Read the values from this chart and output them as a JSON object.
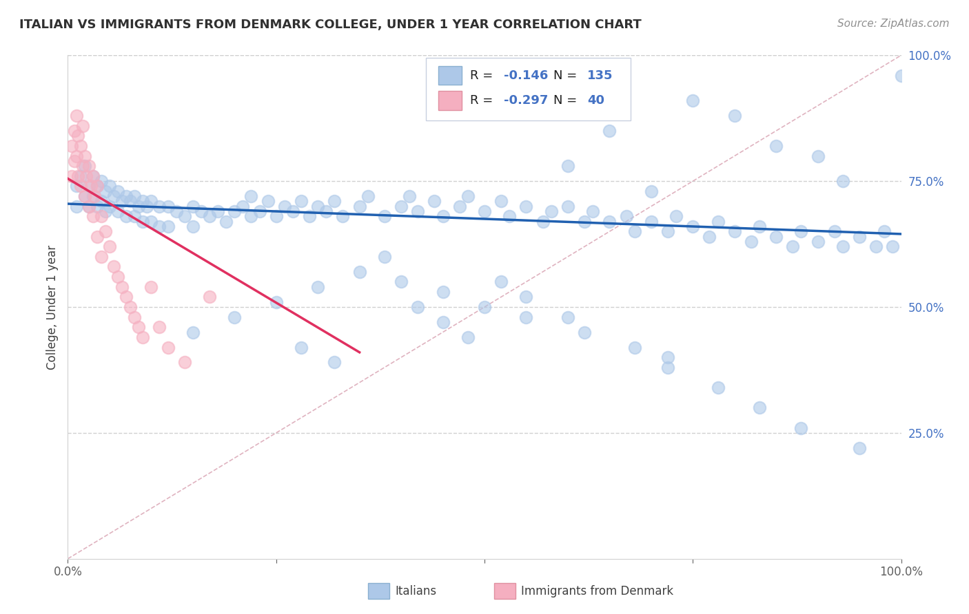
{
  "title": "ITALIAN VS IMMIGRANTS FROM DENMARK COLLEGE, UNDER 1 YEAR CORRELATION CHART",
  "source": "Source: ZipAtlas.com",
  "ylabel": "College, Under 1 year",
  "xmin": 0.0,
  "xmax": 1.0,
  "ymin": 0.0,
  "ymax": 1.0,
  "xticks": [
    0.0,
    0.25,
    0.5,
    0.75,
    1.0
  ],
  "xtick_labels": [
    "0.0%",
    "",
    "",
    "",
    "100.0%"
  ],
  "yticks": [
    0.25,
    0.5,
    0.75,
    1.0
  ],
  "ytick_labels": [
    "25.0%",
    "50.0%",
    "75.0%",
    "100.0%"
  ],
  "legend_entries": [
    "Italians",
    "Immigrants from Denmark"
  ],
  "R_italian": -0.146,
  "N_italian": 135,
  "R_denmark": -0.297,
  "N_denmark": 40,
  "scatter_italian_color": "#adc8e8",
  "scatter_denmark_color": "#f5afc0",
  "line_italian_color": "#2060b0",
  "line_denmark_color": "#e03060",
  "diagonal_color": "#d8a0b0",
  "background_color": "#ffffff",
  "title_color": "#303030",
  "source_color": "#909090",
  "ytick_color": "#4472c4",
  "italian_line_x0": 0.0,
  "italian_line_y0": 0.705,
  "italian_line_x1": 1.0,
  "italian_line_y1": 0.645,
  "denmark_line_x0": 0.0,
  "denmark_line_y0": 0.755,
  "denmark_line_x1": 0.35,
  "denmark_line_y1": 0.41,
  "italian_points_x": [
    0.01,
    0.01,
    0.015,
    0.02,
    0.02,
    0.025,
    0.025,
    0.03,
    0.03,
    0.035,
    0.035,
    0.04,
    0.04,
    0.045,
    0.045,
    0.05,
    0.05,
    0.055,
    0.06,
    0.06,
    0.065,
    0.07,
    0.07,
    0.075,
    0.08,
    0.08,
    0.085,
    0.09,
    0.09,
    0.095,
    0.1,
    0.1,
    0.11,
    0.11,
    0.12,
    0.12,
    0.13,
    0.14,
    0.15,
    0.15,
    0.16,
    0.17,
    0.18,
    0.19,
    0.2,
    0.21,
    0.22,
    0.23,
    0.24,
    0.25,
    0.26,
    0.27,
    0.28,
    0.29,
    0.3,
    0.31,
    0.32,
    0.33,
    0.35,
    0.36,
    0.38,
    0.4,
    0.41,
    0.42,
    0.44,
    0.45,
    0.47,
    0.48,
    0.5,
    0.52,
    0.53,
    0.55,
    0.57,
    0.58,
    0.6,
    0.62,
    0.63,
    0.65,
    0.67,
    0.68,
    0.7,
    0.72,
    0.73,
    0.75,
    0.77,
    0.78,
    0.8,
    0.82,
    0.83,
    0.85,
    0.87,
    0.88,
    0.9,
    0.92,
    0.93,
    0.95,
    0.97,
    0.98,
    0.99,
    1.0,
    0.52,
    0.55,
    0.6,
    0.65,
    0.7,
    0.75,
    0.8,
    0.85,
    0.9,
    0.93,
    0.42,
    0.45,
    0.48,
    0.38,
    0.35,
    0.3,
    0.25,
    0.2,
    0.15,
    0.22,
    0.28,
    0.32,
    0.62,
    0.68,
    0.72,
    0.55,
    0.5,
    0.45,
    0.4,
    0.6,
    0.72,
    0.78,
    0.83,
    0.88,
    0.95
  ],
  "italian_points_y": [
    0.74,
    0.7,
    0.76,
    0.78,
    0.72,
    0.74,
    0.7,
    0.76,
    0.72,
    0.74,
    0.7,
    0.75,
    0.71,
    0.73,
    0.69,
    0.74,
    0.7,
    0.72,
    0.73,
    0.69,
    0.71,
    0.72,
    0.68,
    0.71,
    0.72,
    0.68,
    0.7,
    0.71,
    0.67,
    0.7,
    0.71,
    0.67,
    0.7,
    0.66,
    0.7,
    0.66,
    0.69,
    0.68,
    0.7,
    0.66,
    0.69,
    0.68,
    0.69,
    0.67,
    0.69,
    0.7,
    0.68,
    0.69,
    0.71,
    0.68,
    0.7,
    0.69,
    0.71,
    0.68,
    0.7,
    0.69,
    0.71,
    0.68,
    0.7,
    0.72,
    0.68,
    0.7,
    0.72,
    0.69,
    0.71,
    0.68,
    0.7,
    0.72,
    0.69,
    0.71,
    0.68,
    0.7,
    0.67,
    0.69,
    0.7,
    0.67,
    0.69,
    0.67,
    0.68,
    0.65,
    0.67,
    0.65,
    0.68,
    0.66,
    0.64,
    0.67,
    0.65,
    0.63,
    0.66,
    0.64,
    0.62,
    0.65,
    0.63,
    0.65,
    0.62,
    0.64,
    0.62,
    0.65,
    0.62,
    0.96,
    0.55,
    0.52,
    0.78,
    0.85,
    0.73,
    0.91,
    0.88,
    0.82,
    0.8,
    0.75,
    0.5,
    0.47,
    0.44,
    0.6,
    0.57,
    0.54,
    0.51,
    0.48,
    0.45,
    0.72,
    0.42,
    0.39,
    0.45,
    0.42,
    0.4,
    0.48,
    0.5,
    0.53,
    0.55,
    0.48,
    0.38,
    0.34,
    0.3,
    0.26,
    0.22
  ],
  "denmark_points_x": [
    0.005,
    0.005,
    0.008,
    0.008,
    0.01,
    0.01,
    0.012,
    0.012,
    0.015,
    0.015,
    0.018,
    0.018,
    0.02,
    0.02,
    0.022,
    0.025,
    0.025,
    0.028,
    0.03,
    0.03,
    0.032,
    0.035,
    0.035,
    0.04,
    0.04,
    0.045,
    0.05,
    0.055,
    0.06,
    0.065,
    0.07,
    0.075,
    0.08,
    0.085,
    0.09,
    0.1,
    0.11,
    0.12,
    0.14,
    0.17
  ],
  "denmark_points_y": [
    0.82,
    0.76,
    0.85,
    0.79,
    0.88,
    0.8,
    0.84,
    0.76,
    0.82,
    0.74,
    0.86,
    0.78,
    0.8,
    0.72,
    0.76,
    0.78,
    0.7,
    0.74,
    0.76,
    0.68,
    0.72,
    0.74,
    0.64,
    0.68,
    0.6,
    0.65,
    0.62,
    0.58,
    0.56,
    0.54,
    0.52,
    0.5,
    0.48,
    0.46,
    0.44,
    0.54,
    0.46,
    0.42,
    0.39,
    0.52
  ]
}
